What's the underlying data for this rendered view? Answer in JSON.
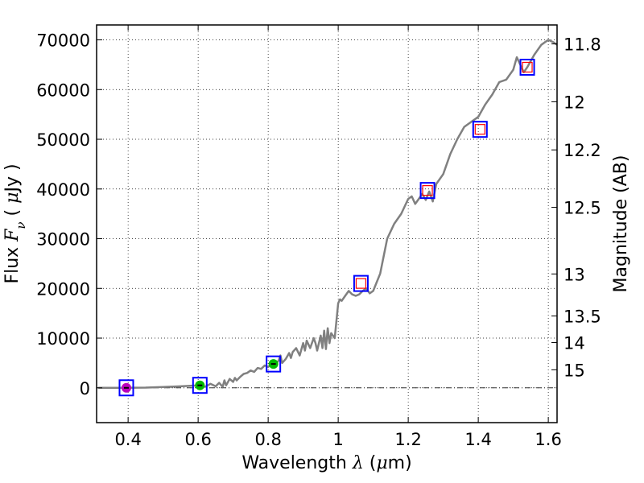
{
  "chart_data": {
    "type": "line",
    "title": "",
    "xlabel": {
      "prefix": "Wavelength  ",
      "symbol": "λ",
      "unit_open": " (",
      "unit_symbol": "μ",
      "unit_rest": "m)"
    },
    "ylabel": {
      "prefix": "Flux  ",
      "symbol": "F",
      "subscript": "ν",
      "unit_open": "  ( ",
      "unit_symbol": "μ",
      "unit_rest": "Jy )"
    },
    "y2label": "Magnitude (AB)",
    "xlim": [
      0.31,
      1.625
    ],
    "ylim": [
      -7000,
      73000
    ],
    "xticks": [
      {
        "value": 0.4,
        "label": "0.4"
      },
      {
        "value": 0.6,
        "label": "0.6"
      },
      {
        "value": 0.8,
        "label": "0.8"
      },
      {
        "value": 1.0,
        "label": "1"
      },
      {
        "value": 1.2,
        "label": "1.2"
      },
      {
        "value": 1.4,
        "label": "1.4"
      },
      {
        "value": 1.6,
        "label": "1.6"
      }
    ],
    "yticks": [
      {
        "value": 0,
        "label": "0"
      },
      {
        "value": 10000,
        "label": "10000"
      },
      {
        "value": 20000,
        "label": "20000"
      },
      {
        "value": 30000,
        "label": "30000"
      },
      {
        "value": 40000,
        "label": "40000"
      },
      {
        "value": 50000,
        "label": "50000"
      },
      {
        "value": 60000,
        "label": "60000"
      },
      {
        "value": 70000,
        "label": "70000"
      }
    ],
    "magnitude_ticks": [
      {
        "mag": 11.8,
        "label": "11.8"
      },
      {
        "mag": 12,
        "label": "12"
      },
      {
        "mag": 12.2,
        "label": "12.2"
      },
      {
        "mag": 12.5,
        "label": "12.5"
      },
      {
        "mag": 13,
        "label": "13"
      },
      {
        "mag": 13.5,
        "label": "13.5"
      },
      {
        "mag": 14,
        "label": "14"
      },
      {
        "mag": 15,
        "label": "15"
      }
    ],
    "grid": true,
    "zero_line": true,
    "colors": {
      "spectrum": "#808080",
      "box": "#0000ff",
      "open_square": "#ff0000",
      "optical_point": "#00bb00",
      "u_point": "#bb00bb",
      "zero_line": "#333333"
    },
    "spectrum": {
      "x": [
        0.315,
        0.38,
        0.45,
        0.5,
        0.55,
        0.6,
        0.62,
        0.635,
        0.65,
        0.66,
        0.67,
        0.675,
        0.68,
        0.69,
        0.7,
        0.705,
        0.71,
        0.72,
        0.73,
        0.74,
        0.75,
        0.76,
        0.77,
        0.78,
        0.79,
        0.8,
        0.81,
        0.82,
        0.83,
        0.835,
        0.84,
        0.85,
        0.86,
        0.865,
        0.87,
        0.88,
        0.89,
        0.9,
        0.905,
        0.91,
        0.92,
        0.93,
        0.935,
        0.94,
        0.95,
        0.955,
        0.96,
        0.965,
        0.97,
        0.975,
        0.98,
        0.99,
        1.0,
        1.005,
        1.01,
        1.02,
        1.03,
        1.04,
        1.05,
        1.06,
        1.07,
        1.08,
        1.09,
        1.1,
        1.12,
        1.14,
        1.16,
        1.18,
        1.2,
        1.21,
        1.22,
        1.23,
        1.24,
        1.25,
        1.26,
        1.27,
        1.28,
        1.29,
        1.3,
        1.32,
        1.34,
        1.36,
        1.38,
        1.4,
        1.42,
        1.44,
        1.46,
        1.48,
        1.5,
        1.51,
        1.52,
        1.53,
        1.54,
        1.56,
        1.58,
        1.6,
        1.615,
        1.625
      ],
      "y": [
        0,
        0,
        50,
        150,
        300,
        500,
        200,
        800,
        300,
        1000,
        200,
        1500,
        500,
        1800,
        1200,
        2000,
        1500,
        2200,
        2800,
        3000,
        3500,
        3200,
        4000,
        3800,
        4500,
        4200,
        4800,
        4600,
        5500,
        6500,
        5000,
        5800,
        7000,
        6000,
        7200,
        8000,
        6500,
        9000,
        7500,
        9500,
        8000,
        10000,
        9000,
        7500,
        10500,
        8000,
        11500,
        7800,
        12000,
        9000,
        11000,
        10000,
        17000,
        17800,
        17500,
        18500,
        19500,
        18800,
        18500,
        18800,
        19500,
        20000,
        19000,
        19500,
        23000,
        30000,
        33000,
        35000,
        38000,
        38500,
        37000,
        38000,
        39000,
        37800,
        39500,
        37500,
        41000,
        42000,
        43000,
        47000,
        50000,
        52500,
        53500,
        54500,
        57000,
        59000,
        61500,
        62000,
        64000,
        66500,
        65000,
        63500,
        64500,
        67000,
        69000,
        70000,
        69500,
        69000
      ]
    },
    "photometry": [
      {
        "wavelength": 0.395,
        "flux": 0,
        "marker": "filled-circle",
        "color": "#bb00bb"
      },
      {
        "wavelength": 0.605,
        "flux": 500,
        "marker": "filled-circle",
        "color": "#00bb00"
      },
      {
        "wavelength": 0.815,
        "flux": 4800,
        "marker": "filled-circle",
        "color": "#00bb00"
      },
      {
        "wavelength": 1.065,
        "flux": 21000,
        "marker": "open-square",
        "color": "#ff0000"
      },
      {
        "wavelength": 1.255,
        "flux": 39700,
        "marker": "open-square",
        "color": "#ff0000"
      },
      {
        "wavelength": 1.405,
        "flux": 52000,
        "marker": "open-square",
        "color": "#ff0000"
      },
      {
        "wavelength": 1.54,
        "flux": 64500,
        "marker": "open-square",
        "color": "#ff0000"
      }
    ]
  }
}
